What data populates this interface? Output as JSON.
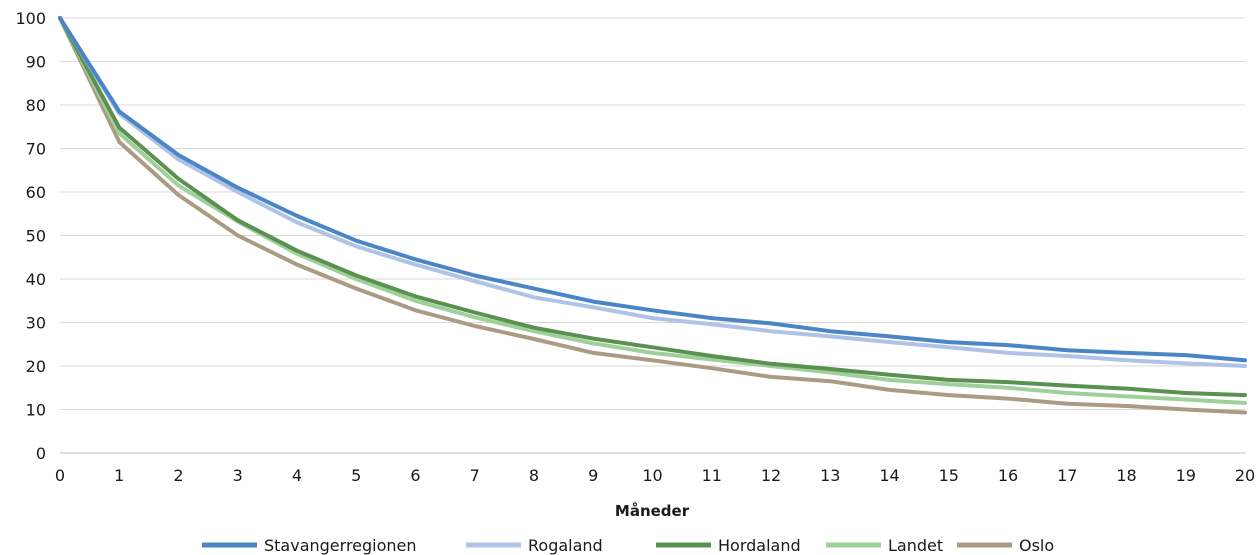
{
  "chart_data": {
    "type": "line",
    "xlabel": "Måneder",
    "ylabel": "",
    "ylim": [
      0,
      100
    ],
    "xlim": [
      0,
      20
    ],
    "y_ticks": [
      0,
      10,
      20,
      30,
      40,
      50,
      60,
      70,
      80,
      90,
      100
    ],
    "x": [
      0,
      1,
      2,
      3,
      4,
      5,
      6,
      7,
      8,
      9,
      10,
      11,
      12,
      13,
      14,
      15,
      16,
      17,
      18,
      19,
      20
    ],
    "grid": "horizontal",
    "legend_position": "bottom",
    "series": [
      {
        "name": "Stavangerregionen",
        "color": "#4a86c5",
        "values": [
          100,
          78.5,
          68.5,
          61,
          54.5,
          48.8,
          44.5,
          40.8,
          37.8,
          34.8,
          32.8,
          31,
          29.8,
          28,
          26.8,
          25.5,
          24.8,
          23.6,
          23,
          22.5,
          21.3
        ]
      },
      {
        "name": "Rogaland",
        "color": "#aec3e6",
        "values": [
          100,
          78,
          67.5,
          60,
          53,
          47.5,
          43.3,
          39.5,
          35.8,
          33.5,
          31,
          29.6,
          28,
          26.8,
          25.5,
          24.3,
          23,
          22.3,
          21.3,
          20.6,
          20
        ]
      },
      {
        "name": "Hordaland",
        "color": "#5a9150",
        "values": [
          100,
          74.8,
          63,
          53.5,
          46.5,
          40.8,
          36,
          32.3,
          28.8,
          26.3,
          24.3,
          22.3,
          20.5,
          19.3,
          18,
          16.8,
          16.3,
          15.5,
          14.8,
          13.8,
          13.3
        ]
      },
      {
        "name": "Landet",
        "color": "#9fd09a",
        "values": [
          100,
          73.5,
          61.5,
          53.2,
          45.8,
          40,
          35,
          31.2,
          28,
          25.2,
          23,
          21.5,
          20,
          18.5,
          16.8,
          15.8,
          15,
          13.8,
          13,
          12.3,
          11.5
        ]
      },
      {
        "name": "Oslo",
        "color": "#ab9b82",
        "values": [
          100,
          71.5,
          59.3,
          50,
          43.3,
          37.8,
          32.8,
          29.2,
          26.2,
          23,
          21.3,
          19.5,
          17.5,
          16.5,
          14.5,
          13.3,
          12.5,
          11.3,
          10.8,
          10,
          9.3
        ]
      }
    ]
  }
}
